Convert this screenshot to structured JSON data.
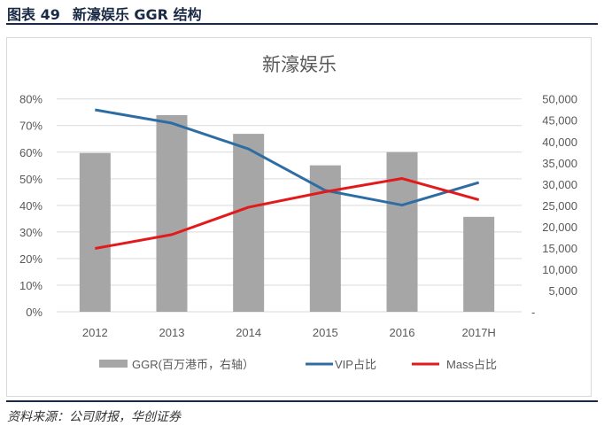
{
  "header": {
    "figure_label": "图表 49",
    "title": "新濠娱乐 GGR 结构"
  },
  "source": "资料来源：公司财报，华创证券",
  "chart_data": {
    "type": "bar+line",
    "title": "新濠娱乐",
    "categories": [
      "2012",
      "2013",
      "2014",
      "2015",
      "2016",
      "2017H"
    ],
    "left_axis": {
      "ylim": [
        0,
        80
      ],
      "ticks": [
        "0%",
        "10%",
        "20%",
        "30%",
        "40%",
        "50%",
        "60%",
        "70%",
        "80%"
      ]
    },
    "right_axis": {
      "ylim": [
        0,
        50000
      ],
      "ticks": [
        "-",
        "5,000",
        "10,000",
        "15,000",
        "20,000",
        "25,000",
        "30,000",
        "35,000",
        "40,000",
        "45,000",
        "50,000"
      ]
    },
    "grid": true,
    "legend_position": "bottom",
    "series": [
      {
        "name": "GGR(百万港币，右轴）",
        "type": "bar",
        "axis": "right",
        "color": "#a6a6a6",
        "values": [
          37300,
          46200,
          41800,
          34400,
          37500,
          22300
        ]
      },
      {
        "name": "VIP占比",
        "type": "line",
        "axis": "left",
        "color": "#2e6da4",
        "values": [
          75.9,
          70.9,
          61.2,
          45.6,
          40.1,
          48.6
        ]
      },
      {
        "name": "Mass占比",
        "type": "line",
        "axis": "left",
        "color": "#e31a1c",
        "values": [
          23.8,
          29.0,
          39.3,
          45.1,
          50.1,
          42.1
        ]
      }
    ]
  }
}
